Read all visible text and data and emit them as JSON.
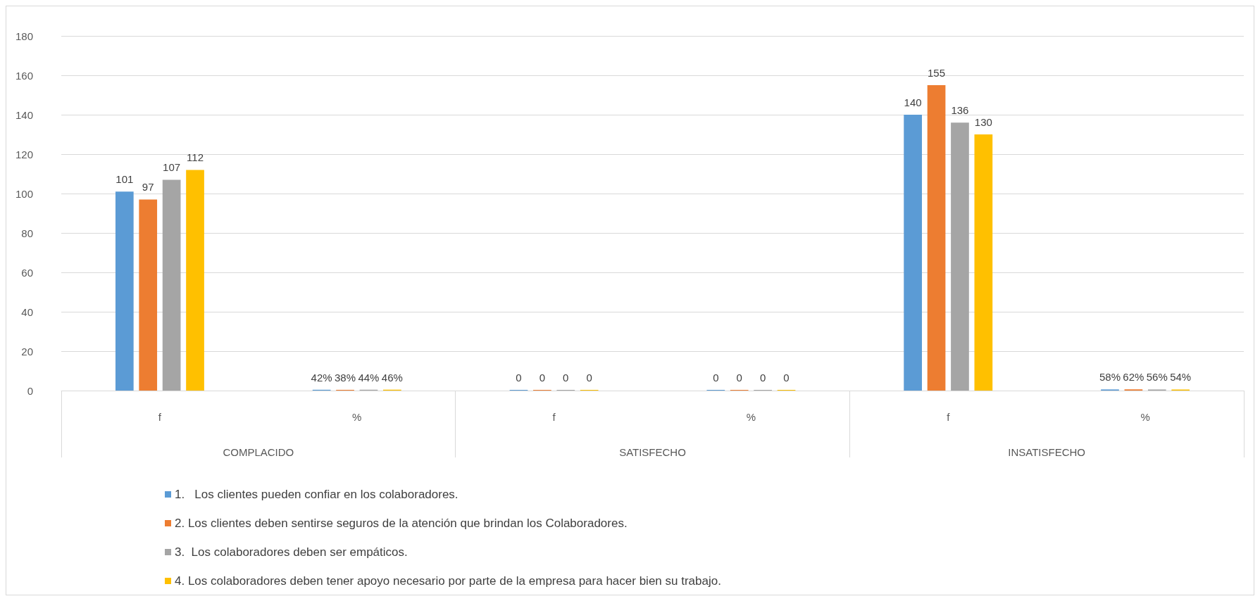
{
  "chart_data": {
    "type": "bar",
    "categories": [
      "f",
      "%",
      "f",
      "%",
      "f",
      "%"
    ],
    "annotations": [
      "COMPLACIDO",
      "SATISFECHO",
      "INSATISFECHO"
    ],
    "series": [
      {
        "name": "1.   Los clientes pueden confiar en los colaboradores.",
        "color": "#5b9bd5",
        "values": [
          101,
          0.42,
          0,
          0,
          140,
          0.58
        ],
        "value_labels": [
          "101",
          "42%",
          "0",
          "0",
          "140",
          "58%"
        ]
      },
      {
        "name": "2. Los clientes deben sentirse seguros de la atención que brindan los Colaboradores.",
        "color": "#ed7d31",
        "values": [
          97,
          0.38,
          0,
          0,
          155,
          0.62
        ],
        "value_labels": [
          "97",
          "38%",
          "0",
          "0",
          "155",
          "62%"
        ]
      },
      {
        "name": "3.  Los colaboradores deben ser empáticos.",
        "color": "#a5a5a5",
        "values": [
          107,
          0.44,
          0,
          0,
          136,
          0.56
        ],
        "value_labels": [
          "107",
          "44%",
          "0",
          "0",
          "136",
          "56%"
        ]
      },
      {
        "name": "4. Los colaboradores deben tener apoyo necesario por parte de la empresa para hacer bien su trabajo.",
        "color": "#ffc000",
        "values": [
          112,
          0.46,
          0,
          0,
          130,
          0.54
        ],
        "value_labels": [
          "112",
          "46%",
          "0",
          "0",
          "130",
          "54%"
        ]
      }
    ],
    "ylim": [
      0,
      180
    ],
    "yticks": [
      0,
      20,
      40,
      60,
      80,
      100,
      120,
      140,
      160,
      180
    ],
    "grid": "y",
    "legend": "bottom"
  }
}
